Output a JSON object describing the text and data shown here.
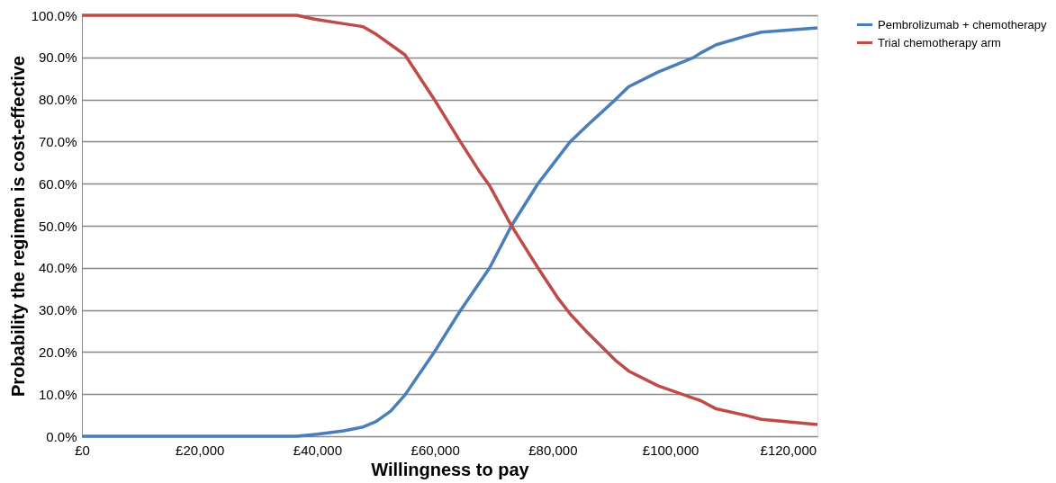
{
  "chart_data": {
    "type": "line",
    "xlabel": "Willingness to pay",
    "ylabel": "Probability the regimen is cost-effective",
    "xlim": [
      0,
      125000
    ],
    "xticks": [
      {
        "value": 0,
        "label": "£0"
      },
      {
        "value": 20000,
        "label": "£20,000"
      },
      {
        "value": 40000,
        "label": "£40,000"
      },
      {
        "value": 60000,
        "label": "£60,000"
      },
      {
        "value": 80000,
        "label": "£80,000"
      },
      {
        "value": 100000,
        "label": "£100,000"
      },
      {
        "value": 120000,
        "label": "£120,000"
      }
    ],
    "ylim": [
      0,
      100
    ],
    "yticks": [
      {
        "value": 0,
        "label": "0.0%"
      },
      {
        "value": 10,
        "label": "10.0%"
      },
      {
        "value": 20,
        "label": "20.0%"
      },
      {
        "value": 30,
        "label": "30.0%"
      },
      {
        "value": 40,
        "label": "40.0%"
      },
      {
        "value": 50,
        "label": "50.0%"
      },
      {
        "value": 60,
        "label": "60.0%"
      },
      {
        "value": 70,
        "label": "70.0%"
      },
      {
        "value": 80,
        "label": "80.0%"
      },
      {
        "value": 90,
        "label": "90.0%"
      },
      {
        "value": 100,
        "label": "100.0%"
      }
    ],
    "grid": "y",
    "legend": "right",
    "marker": "none",
    "line_style": "solid",
    "series": [
      {
        "name": "Pembrolizumab + chemotherapy",
        "color": "#4a7ebb",
        "x": [
          0,
          36500,
          40000,
          44500,
          47800,
          50000,
          52500,
          54900,
          59800,
          64300,
          69300,
          73000,
          77500,
          80800,
          83000,
          86000,
          90700,
          92900,
          97900,
          104000,
          105100,
          107800,
          112700,
          115500,
          125000
        ],
        "values": [
          0,
          0,
          0.5,
          1.3,
          2.2,
          3.5,
          6,
          9.8,
          19.8,
          29.8,
          40,
          50,
          60,
          66,
          70,
          74,
          80,
          83,
          86.5,
          90,
          91,
          93,
          95,
          96,
          97
        ]
      },
      {
        "name": "Trial chemotherapy arm",
        "color": "#be4b48",
        "x": [
          0,
          36500,
          39500,
          44500,
          47800,
          50000,
          52500,
          54900,
          59800,
          64300,
          67500,
          69300,
          73000,
          77500,
          80800,
          83000,
          86000,
          90700,
          92900,
          97900,
          104000,
          105100,
          107800,
          112700,
          115500,
          125000
        ],
        "values": [
          100,
          100,
          99.1,
          98,
          97.3,
          95.5,
          93,
          90.6,
          80.2,
          70,
          63,
          59.5,
          50,
          40,
          33,
          29,
          24.5,
          18,
          15.5,
          12,
          9,
          8.5,
          6.5,
          5,
          4,
          2.8
        ]
      }
    ]
  }
}
